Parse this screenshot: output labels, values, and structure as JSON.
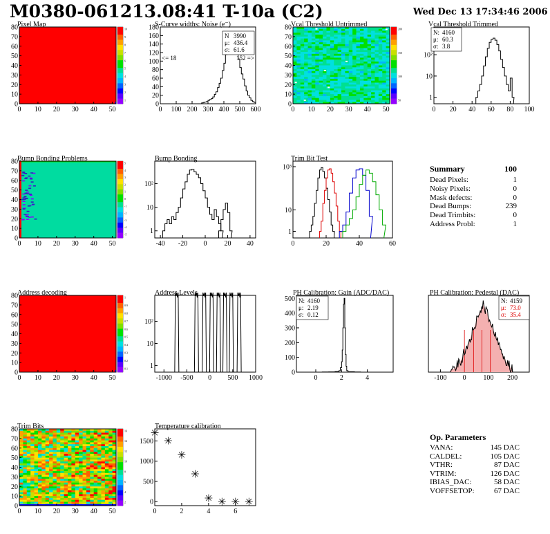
{
  "header": {
    "title": "M0380-061213.08:41 T-10a (C2)",
    "date": "Wed Dec 13 17:34:46 2006"
  },
  "chart_data": [
    {
      "id": "pixel-map",
      "type": "heatmap",
      "title": "Pixel Map",
      "xlim": [
        0,
        52
      ],
      "ylim": [
        0,
        80
      ],
      "xticks": [
        0,
        10,
        20,
        30,
        40,
        50
      ],
      "yticks": [
        0,
        10,
        20,
        30,
        40,
        50,
        60,
        70,
        80
      ],
      "z_range": [
        0,
        10
      ],
      "scale_labels": [
        "10",
        "9",
        "8",
        "7",
        "6",
        "5",
        "4",
        "3",
        "2",
        "1"
      ],
      "fill_value": 10
    },
    {
      "id": "scurve-widths",
      "type": "line",
      "title": "S-Curve widths: Noise (e⁻)",
      "xlim": [
        0,
        600
      ],
      "ylim": [
        0,
        180
      ],
      "xticks": [
        0,
        100,
        200,
        300,
        400,
        500,
        600
      ],
      "yticks": [
        0,
        20,
        40,
        60,
        80,
        100,
        120,
        140,
        160,
        180
      ],
      "stats": [
        {
          "label": "N",
          "value": "3990"
        },
        {
          "label": "μ:",
          "value": "436.4"
        },
        {
          "label": "σ:",
          "value": "61.6"
        }
      ],
      "annotations": [
        "<= 18",
        "152 =>"
      ],
      "x": [
        260,
        270,
        280,
        290,
        300,
        310,
        320,
        330,
        340,
        350,
        360,
        370,
        380,
        390,
        400,
        410,
        420,
        430,
        440,
        450,
        460,
        470,
        480,
        490,
        500,
        510,
        520,
        530,
        540,
        550,
        560,
        570,
        580,
        590
      ],
      "y": [
        2,
        3,
        4,
        5,
        8,
        10,
        12,
        16,
        22,
        28,
        38,
        48,
        60,
        78,
        95,
        115,
        130,
        150,
        160,
        165,
        155,
        140,
        120,
        105,
        85,
        70,
        58,
        42,
        30,
        20,
        14,
        8,
        5,
        3
      ]
    },
    {
      "id": "vcal-untrimmed",
      "type": "heatmap",
      "title": "Vcal Threshold Untrimmed",
      "xlim": [
        0,
        52
      ],
      "ylim": [
        0,
        80
      ],
      "xticks": [
        0,
        10,
        20,
        30,
        40,
        50
      ],
      "yticks": [
        0,
        10,
        20,
        30,
        40,
        50,
        60,
        70,
        80
      ],
      "z_range": [
        0,
        200
      ],
      "scale_labels": [
        "200",
        "150",
        "100",
        "50"
      ]
    },
    {
      "id": "vcal-trimmed",
      "type": "line",
      "title": "Vcal Threshold Trimmed",
      "yscale": "log",
      "xlim": [
        0,
        100
      ],
      "xticks": [
        0,
        20,
        40,
        60,
        80,
        100
      ],
      "ytick_labels": [
        "1",
        "10",
        "10²"
      ],
      "stats": [
        {
          "label": "N:",
          "value": "4160"
        },
        {
          "label": "μ:",
          "value": "60.3"
        },
        {
          "label": "σ:",
          "value": "3.8"
        }
      ],
      "x": [
        44,
        46,
        48,
        50,
        52,
        54,
        56,
        58,
        60,
        62,
        64,
        66,
        68,
        70,
        72,
        74,
        76,
        78,
        80,
        82
      ],
      "y": [
        1,
        2,
        4,
        10,
        30,
        80,
        200,
        380,
        520,
        600,
        480,
        300,
        150,
        60,
        25,
        10,
        4,
        2,
        8,
        1
      ]
    },
    {
      "id": "bump-bonding-problems",
      "type": "heatmap",
      "title": "Bump Bonding Problems",
      "xlim": [
        0,
        52
      ],
      "ylim": [
        0,
        80
      ],
      "xticks": [
        0,
        10,
        20,
        30,
        40,
        50
      ],
      "yticks": [
        0,
        10,
        20,
        30,
        40,
        50,
        60,
        70,
        80
      ],
      "z_range": [
        -5,
        5
      ],
      "scale_labels": [
        "5",
        "4",
        "3",
        "2",
        "1",
        "0",
        "-1",
        "-2",
        "-3",
        "-4",
        "-5"
      ]
    },
    {
      "id": "bump-bonding",
      "type": "line",
      "title": "Bump Bonding",
      "yscale": "log",
      "xlim": [
        -45,
        45
      ],
      "xticks": [
        -40,
        -20,
        0,
        20,
        40
      ],
      "ytick_labels": [
        "1",
        "10",
        "10²"
      ],
      "series": [
        {
          "x": [
            -38,
            -36,
            -34,
            -32,
            -30,
            -28,
            -26,
            -24,
            -22,
            -20,
            -18,
            -16,
            -14,
            -12,
            -10,
            -8,
            -6,
            -4,
            -2,
            0,
            2,
            4,
            6,
            8,
            10,
            12,
            14
          ],
          "y": [
            1,
            2,
            3,
            2,
            4,
            3,
            6,
            10,
            25,
            60,
            120,
            250,
            380,
            400,
            320,
            250,
            180,
            100,
            50,
            25,
            10,
            5,
            3,
            8,
            4,
            2,
            1
          ]
        },
        {
          "x": [
            12,
            14,
            16,
            18,
            20,
            22
          ],
          "y": [
            1,
            3,
            8,
            15,
            6,
            1
          ]
        }
      ]
    },
    {
      "id": "trim-bit-test",
      "type": "line",
      "title": "Trim Bit Test",
      "yscale": "log",
      "xlim": [
        0,
        60
      ],
      "xticks": [
        0,
        20,
        40,
        60
      ],
      "ytick_labels": [
        "1",
        "10",
        "10³"
      ],
      "series": [
        {
          "color": "#000000",
          "x": [
            10,
            11,
            12,
            13,
            14,
            15,
            16,
            17,
            18,
            19,
            20,
            21,
            22,
            23,
            24
          ],
          "y": [
            1,
            2,
            5,
            20,
            80,
            300,
            700,
            900,
            600,
            300,
            100,
            30,
            8,
            2,
            1
          ]
        },
        {
          "color": "#dd0000",
          "x": [
            16,
            17,
            18,
            19,
            20,
            21,
            22,
            23,
            24,
            25,
            26,
            27,
            28
          ],
          "y": [
            1,
            3,
            20,
            80,
            300,
            700,
            800,
            500,
            200,
            60,
            15,
            3,
            1
          ]
        },
        {
          "color": "#0000cc",
          "x": [
            28,
            30,
            32,
            34,
            36,
            38,
            40,
            42,
            44,
            46
          ],
          "y": [
            1,
            2,
            8,
            60,
            300,
            700,
            800,
            400,
            80,
            5
          ]
        },
        {
          "color": "#00aa00",
          "x": [
            30,
            32,
            34,
            36,
            38,
            40,
            42,
            44,
            46,
            48,
            50,
            52,
            54
          ],
          "y": [
            1,
            2,
            4,
            10,
            40,
            150,
            400,
            700,
            500,
            200,
            50,
            10,
            2
          ]
        }
      ]
    },
    {
      "id": "address-decoding",
      "type": "heatmap",
      "title": "Address decoding",
      "xlim": [
        0,
        52
      ],
      "ylim": [
        0,
        80
      ],
      "xticks": [
        0,
        10,
        20,
        30,
        40,
        50
      ],
      "yticks": [
        0,
        10,
        20,
        30,
        40,
        50,
        60,
        70,
        80
      ],
      "z_range": [
        0,
        1
      ],
      "scale_labels": [
        "1",
        "0.9",
        "0.8",
        "0.7",
        "0.6",
        "0.5",
        "0.4",
        "0.3",
        "0.2",
        "0.1"
      ],
      "fill_value": 1
    },
    {
      "id": "address-levels",
      "type": "line",
      "title": "Address Levels",
      "yscale": "log",
      "xlim": [
        -1200,
        1000
      ],
      "xticks": [
        -1000,
        -500,
        0,
        500,
        1000
      ],
      "ytick_labels": [
        "1",
        "10",
        "10²"
      ],
      "peaks": [
        -720,
        -290,
        -120,
        40,
        190,
        330,
        470,
        640
      ],
      "peak_height": 2000
    },
    {
      "id": "ph-gain",
      "type": "line",
      "title": "PH Calibration: Gain (ADC/DAC)",
      "xlim": [
        -1.5,
        6
      ],
      "ylim": [
        0,
        520
      ],
      "xticks": [
        0,
        2,
        4
      ],
      "yticks": [
        0,
        100,
        200,
        300,
        400,
        500
      ],
      "stats": [
        {
          "label": "N:",
          "value": "4160"
        },
        {
          "label": "μ:",
          "value": "2.19"
        },
        {
          "label": "σ:",
          "value": "0.12"
        }
      ],
      "x": [
        0.5,
        1.0,
        1.5,
        1.8,
        1.9,
        2.0,
        2.05,
        2.1,
        2.15,
        2.2,
        2.25,
        2.3,
        2.35,
        2.4,
        2.5,
        3.0
      ],
      "y": [
        1,
        2,
        4,
        10,
        30,
        70,
        150,
        300,
        460,
        500,
        300,
        120,
        40,
        10,
        3,
        1
      ]
    },
    {
      "id": "ph-pedestal",
      "type": "line",
      "title": "PH Calibration: Pedestal (DAC)",
      "xlim": [
        -150,
        270
      ],
      "ylim": [
        0,
        100
      ],
      "xticks": [
        -100,
        0,
        100,
        200
      ],
      "stats": [
        {
          "label": "N:",
          "value": "4159",
          "color": "#000000"
        },
        {
          "label": "μ:",
          "value": "73.0",
          "color": "#dd0000"
        },
        {
          "label": "σ:",
          "value": "35.4",
          "color": "#dd0000"
        }
      ],
      "x": [
        -60,
        -40,
        -20,
        0,
        20,
        40,
        60,
        70,
        80,
        90,
        100,
        120,
        140,
        160,
        180,
        200
      ],
      "y": [
        2,
        5,
        12,
        25,
        40,
        58,
        75,
        82,
        88,
        80,
        72,
        55,
        38,
        22,
        10,
        3
      ]
    },
    {
      "id": "trim-bits",
      "type": "heatmap",
      "title": "Trim Bits",
      "xlim": [
        0,
        52
      ],
      "ylim": [
        0,
        80
      ],
      "xticks": [
        0,
        10,
        20,
        30,
        40,
        50
      ],
      "yticks": [
        0,
        10,
        20,
        30,
        40,
        50,
        60,
        70,
        80
      ],
      "z_range": [
        0,
        16
      ],
      "scale_labels": [
        "16",
        "14",
        "12",
        "10",
        "8",
        "6",
        "4",
        "2"
      ]
    },
    {
      "id": "temperature-calibration",
      "type": "scatter",
      "title": "Temperature calibration",
      "xlim": [
        0,
        7.5
      ],
      "ylim": [
        -100,
        1800
      ],
      "xticks": [
        0,
        2,
        4,
        6
      ],
      "yticks": [
        0,
        500,
        1000,
        1500
      ],
      "x": [
        0,
        1,
        2,
        3,
        4,
        5,
        6,
        7
      ],
      "y": [
        1700,
        1500,
        1150,
        680,
        80,
        -10,
        -10,
        -10
      ]
    }
  ],
  "summary": {
    "title": "Summary",
    "total": "100",
    "rows": [
      {
        "label": "Dead Pixels:",
        "value": "1"
      },
      {
        "label": "Noisy Pixels:",
        "value": "0"
      },
      {
        "label": "Mask defects:",
        "value": "0"
      },
      {
        "label": "Dead Bumps:",
        "value": "239"
      },
      {
        "label": "Dead Trimbits:",
        "value": "0"
      },
      {
        "label": "Address Probl:",
        "value": "1"
      }
    ]
  },
  "op_params": {
    "title": "Op. Parameters",
    "rows": [
      {
        "label": "VANA:",
        "value": "145 DAC"
      },
      {
        "label": "CALDEL:",
        "value": "105 DAC"
      },
      {
        "label": "VTHR:",
        "value": "87 DAC"
      },
      {
        "label": "VTRIM:",
        "value": "126 DAC"
      },
      {
        "label": "IBIAS_DAC:",
        "value": "58 DAC"
      },
      {
        "label": "VOFFSETOP:",
        "value": "67 DAC"
      }
    ]
  }
}
